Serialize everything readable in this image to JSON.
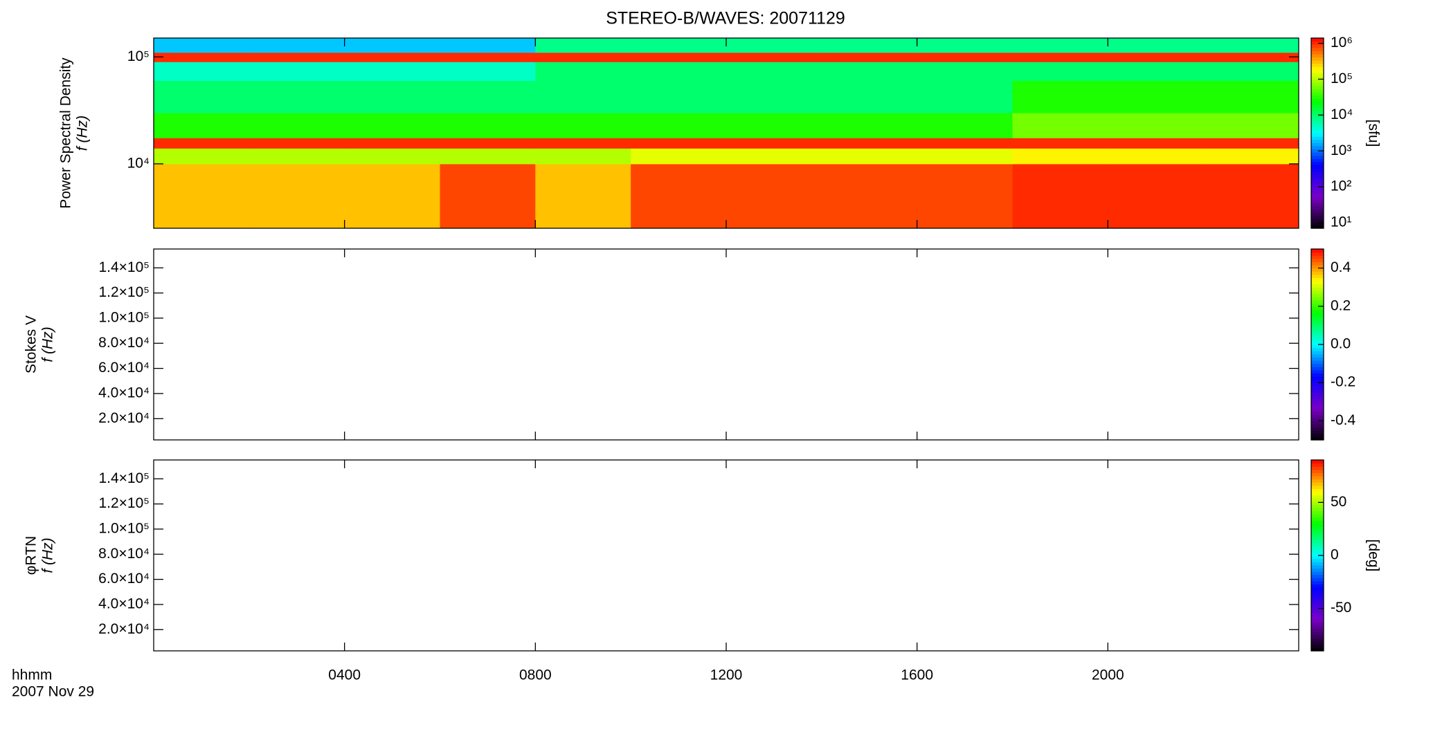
{
  "title": "STEREO-B/WAVES: 20071129",
  "time_label": "hhmm",
  "date_label": "2007 Nov 29",
  "colormap": [
    "#000000",
    "#7a00c8",
    "#0000ff",
    "#00ffff",
    "#00ff00",
    "#ffff00",
    "#ff0000"
  ],
  "chart_data": [
    {
      "type": "heatmap",
      "y_label": "Power Spectral Density",
      "y_sublabel": "f (Hz)",
      "log_y": true,
      "xlim": [
        0,
        24
      ],
      "xticks": [
        4,
        8,
        12,
        16,
        20
      ],
      "ylim": [
        2500,
        150000
      ],
      "yticks": [
        {
          "value": 10000,
          "label": "10⁴"
        },
        {
          "value": 100000,
          "label": "10⁵"
        }
      ],
      "x_edges": [
        0,
        2,
        4,
        6,
        8,
        10,
        12,
        14,
        16,
        18,
        20,
        22,
        24
      ],
      "y_edges": [
        2500,
        10000,
        14000,
        17500,
        30000,
        60000,
        90000,
        110000,
        150000
      ],
      "values": [
        [
          300000,
          300000,
          300000,
          800000,
          300000,
          800000,
          800000,
          800000,
          800000,
          1000000,
          1000000,
          1000000
        ],
        [
          100000,
          100000,
          100000,
          100000,
          100000,
          150000,
          150000,
          150000,
          150000,
          200000,
          200000,
          200000
        ],
        [
          1000000,
          1000000,
          1000000,
          1000000,
          1000000,
          1000000,
          1000000,
          1000000,
          1000000,
          1000000,
          1000000,
          1000000
        ],
        [
          30000,
          30000,
          30000,
          30000,
          30000,
          30000,
          30000,
          30000,
          30000,
          60000,
          60000,
          60000
        ],
        [
          10000,
          10000,
          10000,
          10000,
          10000,
          10000,
          10000,
          10000,
          10000,
          30000,
          30000,
          30000
        ],
        [
          5000,
          5000,
          5000,
          5000,
          10000,
          10000,
          10000,
          10000,
          10000,
          10000,
          10000,
          10000
        ],
        [
          1000000,
          1000000,
          1000000,
          1000000,
          1000000,
          1000000,
          1000000,
          1000000,
          1000000,
          1000000,
          1000000,
          1000000
        ],
        [
          2000,
          2000,
          2000,
          2000,
          8000,
          8000,
          8000,
          8000,
          8000,
          8000,
          8000,
          8000
        ]
      ],
      "log_c": true,
      "clim": [
        7,
        1400000
      ],
      "cticks": [
        {
          "value": 10,
          "label": "10¹"
        },
        {
          "value": 100,
          "label": "10²"
        },
        {
          "value": 1000,
          "label": "10³"
        },
        {
          "value": 10000,
          "label": "10⁴"
        },
        {
          "value": 100000,
          "label": "10⁵"
        },
        {
          "value": 1000000,
          "label": "10⁶"
        }
      ],
      "colorbar_label": "[sfu]"
    },
    {
      "type": "heatmap",
      "y_label": "Stokes V",
      "y_sublabel": "f (Hz)",
      "log_y": false,
      "xlim": [
        0,
        24
      ],
      "xticks": [
        4,
        8,
        12,
        16,
        20
      ],
      "ylim": [
        3100,
        155000
      ],
      "yticks": [
        {
          "value": 20000,
          "label": "2.0×10⁴"
        },
        {
          "value": 40000,
          "label": "4.0×10⁴"
        },
        {
          "value": 60000,
          "label": "6.0×10⁴"
        },
        {
          "value": 80000,
          "label": "8.0×10⁴"
        },
        {
          "value": 100000,
          "label": "1.0×10⁵"
        },
        {
          "value": 120000,
          "label": "1.2×10⁵"
        },
        {
          "value": 140000,
          "label": "1.4×10⁵"
        }
      ],
      "log_c": false,
      "clim": [
        -0.5,
        0.5
      ],
      "cticks": [
        -0.4,
        -0.2,
        {
          "value": 0,
          "label": "0.0"
        },
        0.2,
        0.4
      ]
    },
    {
      "type": "heatmap",
      "y_label": "φRTN",
      "y_sublabel": "f (Hz)",
      "log_y": false,
      "xlim": [
        0,
        24
      ],
      "xticks": [
        {
          "value": 4,
          "label": "0400"
        },
        {
          "value": 8,
          "label": "0800"
        },
        {
          "value": 12,
          "label": "1200"
        },
        {
          "value": 16,
          "label": "1600"
        },
        {
          "value": 20,
          "label": "2000"
        }
      ],
      "ylim": [
        3100,
        155000
      ],
      "yticks": [
        {
          "value": 20000,
          "label": "2.0×10⁴"
        },
        {
          "value": 40000,
          "label": "4.0×10⁴"
        },
        {
          "value": 60000,
          "label": "6.0×10⁴"
        },
        {
          "value": 80000,
          "label": "8.0×10⁴"
        },
        {
          "value": 100000,
          "label": "1.0×10⁵"
        },
        {
          "value": 120000,
          "label": "1.2×10⁵"
        },
        {
          "value": 140000,
          "label": "1.4×10⁵"
        }
      ],
      "log_c": false,
      "clim": [
        -90,
        90
      ],
      "cticks": [
        -50,
        0,
        50
      ],
      "colorbar_label": "[deg]"
    }
  ]
}
